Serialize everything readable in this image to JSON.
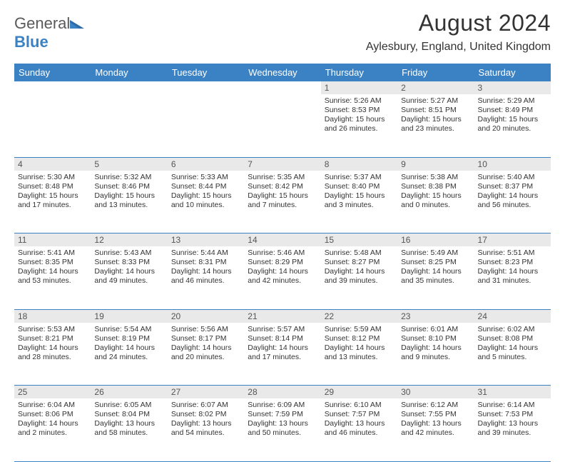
{
  "brand": {
    "name_a": "General",
    "name_b": "Blue",
    "colors": {
      "gray": "#5a5a5a",
      "blue": "#3b82c4"
    }
  },
  "header": {
    "title": "August 2024",
    "location": "Aylesbury, England, United Kingdom"
  },
  "colors": {
    "header_bg": "#3b82c4",
    "header_fg": "#ffffff",
    "daynum_bg": "#e9e9e9",
    "rule": "#3b82c4",
    "text": "#333333"
  },
  "weekdays": [
    "Sunday",
    "Monday",
    "Tuesday",
    "Wednesday",
    "Thursday",
    "Friday",
    "Saturday"
  ],
  "weeks": [
    [
      null,
      null,
      null,
      null,
      {
        "n": "1",
        "sr": "Sunrise: 5:26 AM",
        "ss": "Sunset: 8:53 PM",
        "dl1": "Daylight: 15 hours",
        "dl2": "and 26 minutes."
      },
      {
        "n": "2",
        "sr": "Sunrise: 5:27 AM",
        "ss": "Sunset: 8:51 PM",
        "dl1": "Daylight: 15 hours",
        "dl2": "and 23 minutes."
      },
      {
        "n": "3",
        "sr": "Sunrise: 5:29 AM",
        "ss": "Sunset: 8:49 PM",
        "dl1": "Daylight: 15 hours",
        "dl2": "and 20 minutes."
      }
    ],
    [
      {
        "n": "4",
        "sr": "Sunrise: 5:30 AM",
        "ss": "Sunset: 8:48 PM",
        "dl1": "Daylight: 15 hours",
        "dl2": "and 17 minutes."
      },
      {
        "n": "5",
        "sr": "Sunrise: 5:32 AM",
        "ss": "Sunset: 8:46 PM",
        "dl1": "Daylight: 15 hours",
        "dl2": "and 13 minutes."
      },
      {
        "n": "6",
        "sr": "Sunrise: 5:33 AM",
        "ss": "Sunset: 8:44 PM",
        "dl1": "Daylight: 15 hours",
        "dl2": "and 10 minutes."
      },
      {
        "n": "7",
        "sr": "Sunrise: 5:35 AM",
        "ss": "Sunset: 8:42 PM",
        "dl1": "Daylight: 15 hours",
        "dl2": "and 7 minutes."
      },
      {
        "n": "8",
        "sr": "Sunrise: 5:37 AM",
        "ss": "Sunset: 8:40 PM",
        "dl1": "Daylight: 15 hours",
        "dl2": "and 3 minutes."
      },
      {
        "n": "9",
        "sr": "Sunrise: 5:38 AM",
        "ss": "Sunset: 8:38 PM",
        "dl1": "Daylight: 15 hours",
        "dl2": "and 0 minutes."
      },
      {
        "n": "10",
        "sr": "Sunrise: 5:40 AM",
        "ss": "Sunset: 8:37 PM",
        "dl1": "Daylight: 14 hours",
        "dl2": "and 56 minutes."
      }
    ],
    [
      {
        "n": "11",
        "sr": "Sunrise: 5:41 AM",
        "ss": "Sunset: 8:35 PM",
        "dl1": "Daylight: 14 hours",
        "dl2": "and 53 minutes."
      },
      {
        "n": "12",
        "sr": "Sunrise: 5:43 AM",
        "ss": "Sunset: 8:33 PM",
        "dl1": "Daylight: 14 hours",
        "dl2": "and 49 minutes."
      },
      {
        "n": "13",
        "sr": "Sunrise: 5:44 AM",
        "ss": "Sunset: 8:31 PM",
        "dl1": "Daylight: 14 hours",
        "dl2": "and 46 minutes."
      },
      {
        "n": "14",
        "sr": "Sunrise: 5:46 AM",
        "ss": "Sunset: 8:29 PM",
        "dl1": "Daylight: 14 hours",
        "dl2": "and 42 minutes."
      },
      {
        "n": "15",
        "sr": "Sunrise: 5:48 AM",
        "ss": "Sunset: 8:27 PM",
        "dl1": "Daylight: 14 hours",
        "dl2": "and 39 minutes."
      },
      {
        "n": "16",
        "sr": "Sunrise: 5:49 AM",
        "ss": "Sunset: 8:25 PM",
        "dl1": "Daylight: 14 hours",
        "dl2": "and 35 minutes."
      },
      {
        "n": "17",
        "sr": "Sunrise: 5:51 AM",
        "ss": "Sunset: 8:23 PM",
        "dl1": "Daylight: 14 hours",
        "dl2": "and 31 minutes."
      }
    ],
    [
      {
        "n": "18",
        "sr": "Sunrise: 5:53 AM",
        "ss": "Sunset: 8:21 PM",
        "dl1": "Daylight: 14 hours",
        "dl2": "and 28 minutes."
      },
      {
        "n": "19",
        "sr": "Sunrise: 5:54 AM",
        "ss": "Sunset: 8:19 PM",
        "dl1": "Daylight: 14 hours",
        "dl2": "and 24 minutes."
      },
      {
        "n": "20",
        "sr": "Sunrise: 5:56 AM",
        "ss": "Sunset: 8:17 PM",
        "dl1": "Daylight: 14 hours",
        "dl2": "and 20 minutes."
      },
      {
        "n": "21",
        "sr": "Sunrise: 5:57 AM",
        "ss": "Sunset: 8:14 PM",
        "dl1": "Daylight: 14 hours",
        "dl2": "and 17 minutes."
      },
      {
        "n": "22",
        "sr": "Sunrise: 5:59 AM",
        "ss": "Sunset: 8:12 PM",
        "dl1": "Daylight: 14 hours",
        "dl2": "and 13 minutes."
      },
      {
        "n": "23",
        "sr": "Sunrise: 6:01 AM",
        "ss": "Sunset: 8:10 PM",
        "dl1": "Daylight: 14 hours",
        "dl2": "and 9 minutes."
      },
      {
        "n": "24",
        "sr": "Sunrise: 6:02 AM",
        "ss": "Sunset: 8:08 PM",
        "dl1": "Daylight: 14 hours",
        "dl2": "and 5 minutes."
      }
    ],
    [
      {
        "n": "25",
        "sr": "Sunrise: 6:04 AM",
        "ss": "Sunset: 8:06 PM",
        "dl1": "Daylight: 14 hours",
        "dl2": "and 2 minutes."
      },
      {
        "n": "26",
        "sr": "Sunrise: 6:05 AM",
        "ss": "Sunset: 8:04 PM",
        "dl1": "Daylight: 13 hours",
        "dl2": "and 58 minutes."
      },
      {
        "n": "27",
        "sr": "Sunrise: 6:07 AM",
        "ss": "Sunset: 8:02 PM",
        "dl1": "Daylight: 13 hours",
        "dl2": "and 54 minutes."
      },
      {
        "n": "28",
        "sr": "Sunrise: 6:09 AM",
        "ss": "Sunset: 7:59 PM",
        "dl1": "Daylight: 13 hours",
        "dl2": "and 50 minutes."
      },
      {
        "n": "29",
        "sr": "Sunrise: 6:10 AM",
        "ss": "Sunset: 7:57 PM",
        "dl1": "Daylight: 13 hours",
        "dl2": "and 46 minutes."
      },
      {
        "n": "30",
        "sr": "Sunrise: 6:12 AM",
        "ss": "Sunset: 7:55 PM",
        "dl1": "Daylight: 13 hours",
        "dl2": "and 42 minutes."
      },
      {
        "n": "31",
        "sr": "Sunrise: 6:14 AM",
        "ss": "Sunset: 7:53 PM",
        "dl1": "Daylight: 13 hours",
        "dl2": "and 39 minutes."
      }
    ]
  ]
}
